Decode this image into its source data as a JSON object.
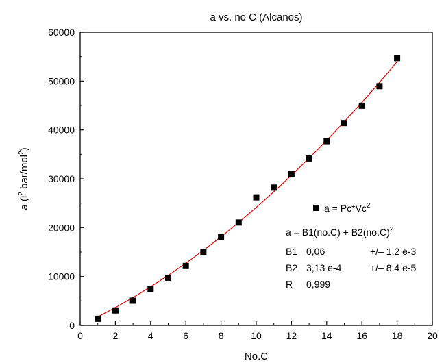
{
  "chart_data": {
    "type": "scatter",
    "title": "a vs. no C (Alcanos)",
    "xlabel": "No.C",
    "ylabel_prefix": "a (l",
    "ylabel_sup1": "2",
    "ylabel_mid": " bar/mol",
    "ylabel_sup2": "2",
    "ylabel_suffix": ")",
    "xlim": [
      0,
      20
    ],
    "ylim": [
      0,
      60000
    ],
    "x_ticks": [
      0,
      2,
      4,
      6,
      8,
      10,
      12,
      14,
      16,
      18,
      20
    ],
    "y_ticks": [
      0,
      10000,
      20000,
      30000,
      40000,
      50000,
      60000
    ],
    "series": [
      {
        "name": "a = Pc*Vc",
        "name_sup": "2",
        "marker": "square",
        "color": "#000000",
        "x": [
          1,
          2,
          3,
          4,
          5,
          6,
          7,
          8,
          9,
          10,
          11,
          12,
          13,
          14,
          15,
          16,
          17,
          18
        ],
        "y": [
          1350,
          3050,
          5050,
          7450,
          9750,
          12150,
          15050,
          18050,
          21050,
          26200,
          28200,
          31050,
          34150,
          37700,
          41400,
          44950,
          48950,
          54700
        ]
      }
    ],
    "fit": {
      "color": "#e00000",
      "b1": 0.06,
      "b2": 0.000313,
      "x_range": [
        1,
        18
      ],
      "scale": 10000
    },
    "legend_position": "right-middle",
    "annotation": {
      "equation_prefix": "a = B1(no.C) + B2(no.C)",
      "equation_sup": "2",
      "rows": [
        {
          "label": "B1",
          "value": "0,06",
          "error": "+/– 1,2 e-3"
        },
        {
          "label": "B2",
          "value": "3,13 e-4",
          "error": "+/– 8,4 e-5"
        },
        {
          "label": "R",
          "value": "0,999",
          "error": ""
        }
      ]
    }
  }
}
